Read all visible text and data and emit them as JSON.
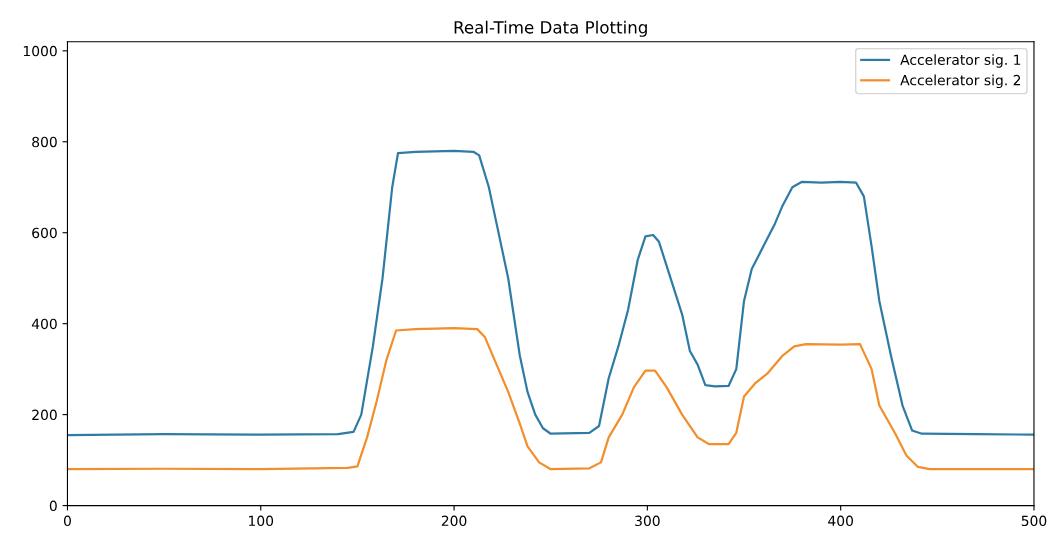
{
  "chart_data": {
    "type": "line",
    "title": "Real-Time Data Plotting",
    "xlim": [
      0,
      500
    ],
    "xticks": [
      0,
      100,
      200,
      300,
      400,
      500
    ],
    "ylim": [
      0,
      1020
    ],
    "yticks": [
      0,
      200,
      400,
      600,
      800,
      1000
    ],
    "grid": false,
    "legend": "top right",
    "series": [
      {
        "name": "Accelerator sig. 1",
        "color": "#2e7ca6",
        "x": [
          0,
          50,
          100,
          140,
          148,
          152,
          158,
          163,
          168,
          171,
          180,
          200,
          210,
          213,
          218,
          222,
          228,
          234,
          238,
          242,
          246,
          250,
          270,
          275,
          280,
          285,
          290,
          295,
          299,
          303,
          306,
          312,
          318,
          322,
          326,
          330,
          335,
          342,
          346,
          350,
          354,
          360,
          366,
          370,
          375,
          380,
          390,
          400,
          408,
          412,
          416,
          420,
          426,
          432,
          437,
          442,
          470,
          500
        ],
        "values": [
          155,
          157,
          156,
          157,
          162,
          200,
          350,
          500,
          700,
          775,
          778,
          780,
          778,
          770,
          700,
          620,
          500,
          330,
          250,
          200,
          170,
          158,
          160,
          175,
          280,
          350,
          430,
          540,
          592,
          595,
          580,
          500,
          420,
          340,
          310,
          265,
          262,
          263,
          300,
          450,
          520,
          570,
          620,
          660,
          700,
          712,
          710,
          712,
          710,
          680,
          570,
          450,
          330,
          220,
          165,
          158,
          157,
          156
        ]
      },
      {
        "name": "Accelerator sig. 2",
        "color": "#f28e2b",
        "x": [
          0,
          50,
          100,
          145,
          150,
          155,
          160,
          165,
          170,
          180,
          200,
          212,
          216,
          222,
          228,
          234,
          238,
          244,
          250,
          270,
          276,
          280,
          287,
          293,
          299,
          304,
          310,
          318,
          326,
          332,
          342,
          346,
          350,
          356,
          362,
          370,
          376,
          382,
          400,
          410,
          416,
          420,
          428,
          434,
          440,
          446,
          500
        ],
        "values": [
          80,
          81,
          80,
          83,
          86,
          150,
          230,
          320,
          385,
          388,
          390,
          388,
          370,
          310,
          250,
          180,
          130,
          95,
          80,
          82,
          95,
          150,
          200,
          260,
          297,
          297,
          260,
          200,
          150,
          135,
          135,
          160,
          240,
          270,
          290,
          330,
          350,
          355,
          354,
          355,
          300,
          220,
          160,
          110,
          85,
          80,
          80
        ]
      }
    ]
  }
}
